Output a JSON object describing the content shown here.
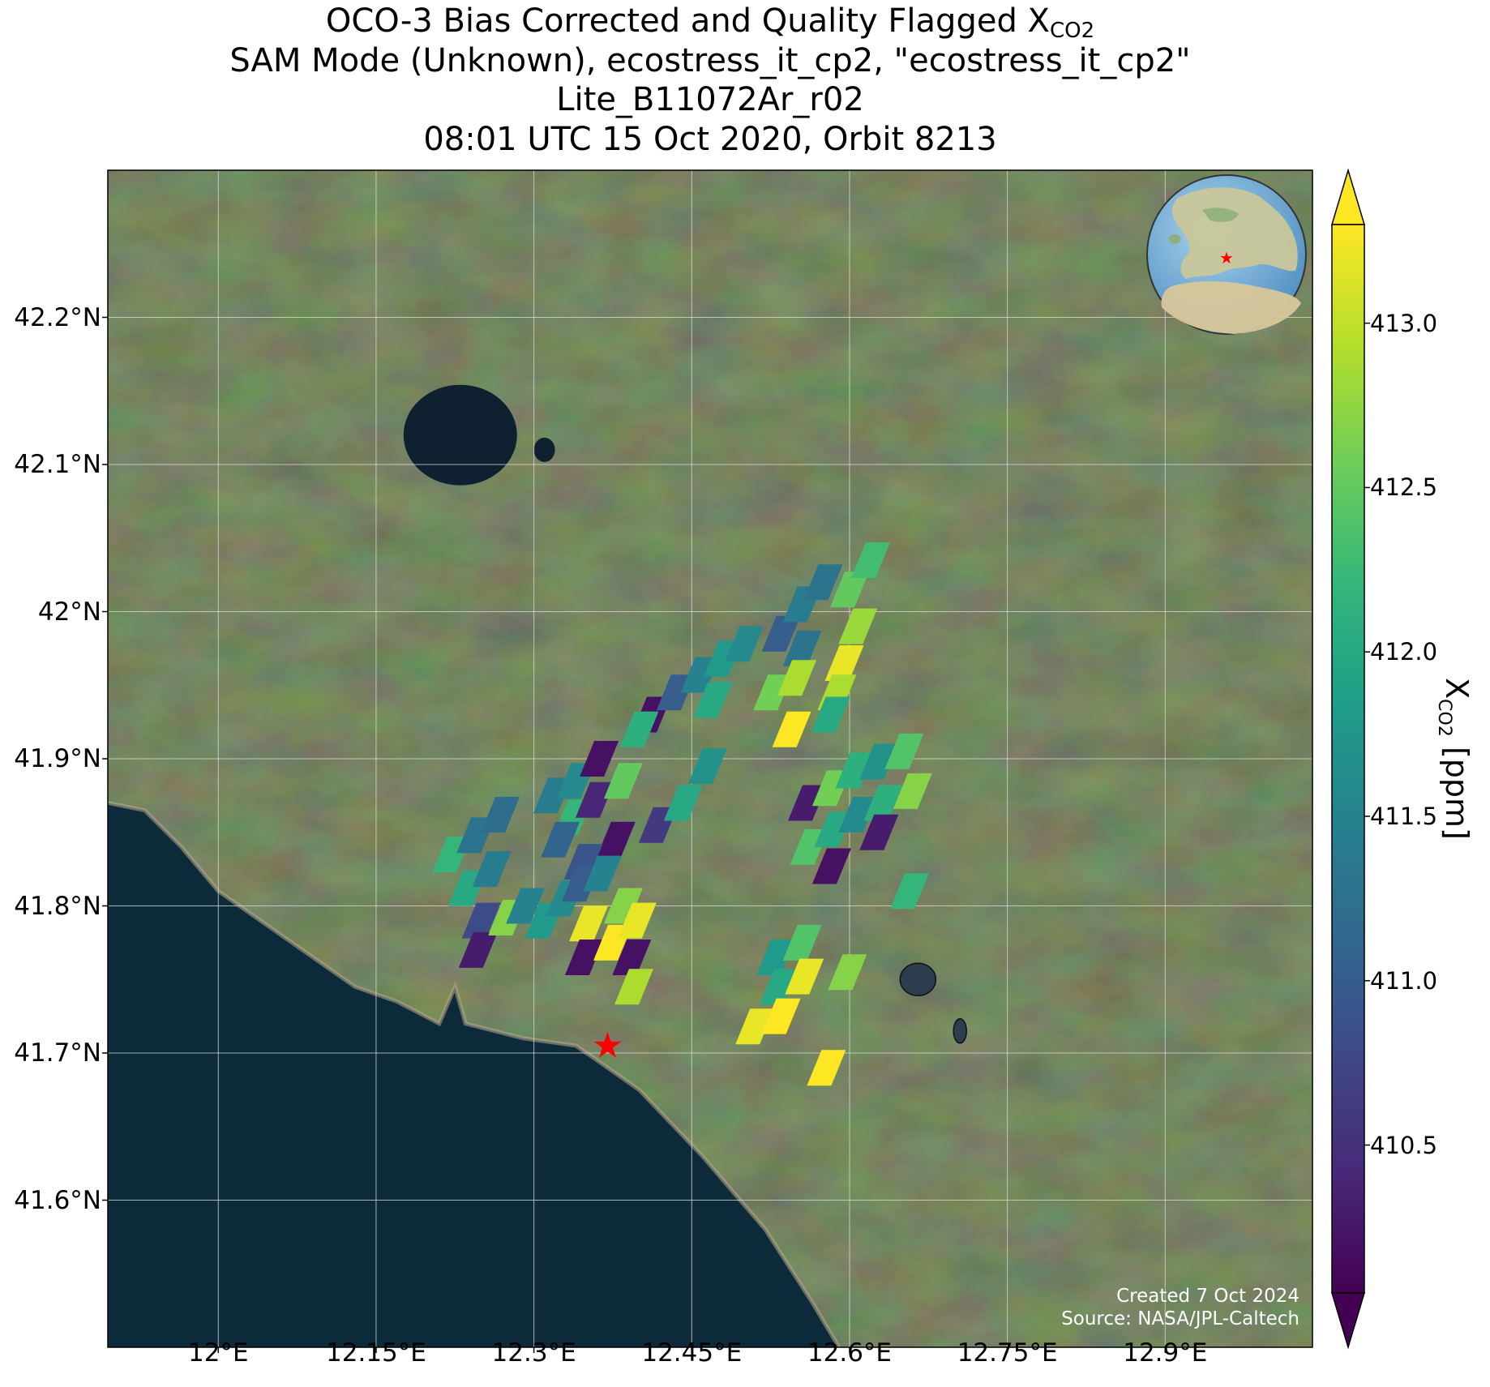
{
  "title": {
    "line1_prefix": "OCO-3 Bias Corrected and Quality Flagged X",
    "line1_sub": "CO2",
    "line2": "SAM Mode (Unknown), ecostress_it_cp2, \"ecostress_it_cp2\"",
    "line3": "Lite_B11072Ar_r02",
    "line4": "08:01 UTC 15 Oct 2020, Orbit 8213"
  },
  "map": {
    "extent": {
      "lon_min": 11.895,
      "lon_max": 13.04,
      "lat_min": 41.5,
      "lat_max": 42.3
    },
    "lat_ticks": [
      {
        "value": 41.6,
        "label": "41.6°N"
      },
      {
        "value": 41.7,
        "label": "41.7°N"
      },
      {
        "value": 41.8,
        "label": "41.8°N"
      },
      {
        "value": 41.9,
        "label": "41.9°N"
      },
      {
        "value": 42.0,
        "label": "42°N"
      },
      {
        "value": 42.1,
        "label": "42.1°N"
      },
      {
        "value": 42.2,
        "label": "42.2°N"
      }
    ],
    "lon_ticks": [
      {
        "value": 12.0,
        "label": "12°E"
      },
      {
        "value": 12.15,
        "label": "12.15°E"
      },
      {
        "value": 12.3,
        "label": "12.3°E"
      },
      {
        "value": 12.45,
        "label": "12.45°E"
      },
      {
        "value": 12.6,
        "label": "12.6°E"
      },
      {
        "value": 12.75,
        "label": "12.75°E"
      },
      {
        "value": 12.9,
        "label": "12.9°E"
      }
    ],
    "target_marker": {
      "symbol": "★",
      "lon": 12.37,
      "lat": 41.705,
      "color": "#ff0000"
    },
    "lakes": [
      {
        "name": "Lake Bracciano",
        "lon": 12.23,
        "lat": 42.12
      },
      {
        "name": "Lake Martignano",
        "lon": 12.31,
        "lat": 42.11
      },
      {
        "name": "Lake Albano",
        "lon": 12.665,
        "lat": 41.75
      },
      {
        "name": "Lake Nemi",
        "lon": 12.705,
        "lat": 41.715
      }
    ]
  },
  "colors": {
    "sea": "#0c2a3a",
    "land": "#4a5a36",
    "grid": "#dddddd",
    "viridis": [
      "#440154",
      "#482878",
      "#3e4989",
      "#31688e",
      "#26828e",
      "#1f9e89",
      "#35b779",
      "#6ece58",
      "#b5de2b",
      "#fde725"
    ]
  },
  "colorbar": {
    "label_prefix": "X",
    "label_sub": "CO2",
    "label_suffix": " [ppm]",
    "vmin": 410.05,
    "vmax": 413.3,
    "ticks": [
      {
        "value": 410.5,
        "label": "410.5"
      },
      {
        "value": 411.0,
        "label": "411.0"
      },
      {
        "value": 411.5,
        "label": "411.5"
      },
      {
        "value": 412.0,
        "label": "412.0"
      },
      {
        "value": 412.5,
        "label": "412.5"
      },
      {
        "value": 413.0,
        "label": "413.0"
      }
    ],
    "extend": "both"
  },
  "soundings": [
    {
      "lon": 12.222,
      "lat": 41.835,
      "xco2": 412.2
    },
    {
      "lon": 12.245,
      "lat": 41.848,
      "xco2": 411.3
    },
    {
      "lon": 12.268,
      "lat": 41.862,
      "xco2": 411.2
    },
    {
      "lon": 12.237,
      "lat": 41.812,
      "xco2": 412.0
    },
    {
      "lon": 12.26,
      "lat": 41.825,
      "xco2": 411.4
    },
    {
      "lon": 12.25,
      "lat": 41.79,
      "xco2": 410.8
    },
    {
      "lon": 12.247,
      "lat": 41.77,
      "xco2": 410.3
    },
    {
      "lon": 12.275,
      "lat": 41.792,
      "xco2": 412.7
    },
    {
      "lon": 12.292,
      "lat": 41.8,
      "xco2": 411.5
    },
    {
      "lon": 12.31,
      "lat": 41.79,
      "xco2": 411.8
    },
    {
      "lon": 12.33,
      "lat": 41.805,
      "xco2": 411.6
    },
    {
      "lon": 12.318,
      "lat": 41.875,
      "xco2": 411.4
    },
    {
      "lon": 12.34,
      "lat": 41.885,
      "xco2": 411.6
    },
    {
      "lon": 12.362,
      "lat": 41.9,
      "xco2": 410.2
    },
    {
      "lon": 12.337,
      "lat": 41.86,
      "xco2": 412.2
    },
    {
      "lon": 12.358,
      "lat": 41.872,
      "xco2": 410.4
    },
    {
      "lon": 12.385,
      "lat": 41.885,
      "xco2": 412.5
    },
    {
      "lon": 12.378,
      "lat": 41.845,
      "xco2": 410.2
    },
    {
      "lon": 12.325,
      "lat": 41.845,
      "xco2": 411.1
    },
    {
      "lon": 12.347,
      "lat": 41.83,
      "xco2": 410.9
    },
    {
      "lon": 12.345,
      "lat": 41.815,
      "xco2": 411.0
    },
    {
      "lon": 12.365,
      "lat": 41.822,
      "xco2": 411.5
    },
    {
      "lon": 12.352,
      "lat": 41.788,
      "xco2": 413.2
    },
    {
      "lon": 12.348,
      "lat": 41.765,
      "xco2": 410.2
    },
    {
      "lon": 12.375,
      "lat": 41.775,
      "xco2": 413.3
    },
    {
      "lon": 12.385,
      "lat": 41.8,
      "xco2": 412.7
    },
    {
      "lon": 12.398,
      "lat": 41.79,
      "xco2": 413.2
    },
    {
      "lon": 12.393,
      "lat": 41.765,
      "xco2": 410.2
    },
    {
      "lon": 12.395,
      "lat": 41.745,
      "xco2": 412.9
    },
    {
      "lon": 12.412,
      "lat": 41.93,
      "xco2": 410.2
    },
    {
      "lon": 12.435,
      "lat": 41.945,
      "xco2": 411.0
    },
    {
      "lon": 12.458,
      "lat": 41.957,
      "xco2": 411.5
    },
    {
      "lon": 12.48,
      "lat": 41.968,
      "xco2": 411.8
    },
    {
      "lon": 12.5,
      "lat": 41.978,
      "xco2": 411.6
    },
    {
      "lon": 12.4,
      "lat": 41.92,
      "xco2": 412.1
    },
    {
      "lon": 12.418,
      "lat": 41.855,
      "xco2": 410.6
    },
    {
      "lon": 12.442,
      "lat": 41.87,
      "xco2": 412.0
    },
    {
      "lon": 12.465,
      "lat": 41.895,
      "xco2": 411.7
    },
    {
      "lon": 12.47,
      "lat": 41.94,
      "xco2": 412.0
    },
    {
      "lon": 12.535,
      "lat": 41.985,
      "xco2": 411.0
    },
    {
      "lon": 12.555,
      "lat": 42.005,
      "xco2": 411.4
    },
    {
      "lon": 12.555,
      "lat": 41.975,
      "xco2": 411.3
    },
    {
      "lon": 12.575,
      "lat": 42.02,
      "xco2": 411.3
    },
    {
      "lon": 12.527,
      "lat": 41.945,
      "xco2": 412.6
    },
    {
      "lon": 12.55,
      "lat": 41.955,
      "xco2": 412.9
    },
    {
      "lon": 12.545,
      "lat": 41.92,
      "xco2": 413.3
    },
    {
      "lon": 12.6,
      "lat": 42.015,
      "xco2": 412.5
    },
    {
      "lon": 12.608,
      "lat": 41.99,
      "xco2": 412.8
    },
    {
      "lon": 12.62,
      "lat": 42.035,
      "xco2": 412.3
    },
    {
      "lon": 12.595,
      "lat": 41.965,
      "xco2": 413.2
    },
    {
      "lon": 12.588,
      "lat": 41.945,
      "xco2": 412.9
    },
    {
      "lon": 12.582,
      "lat": 41.93,
      "xco2": 412.0
    },
    {
      "lon": 12.56,
      "lat": 41.87,
      "xco2": 410.3
    },
    {
      "lon": 12.583,
      "lat": 41.88,
      "xco2": 412.6
    },
    {
      "lon": 12.605,
      "lat": 41.892,
      "xco2": 412.1
    },
    {
      "lon": 12.628,
      "lat": 41.898,
      "xco2": 411.7
    },
    {
      "lon": 12.652,
      "lat": 41.905,
      "xco2": 412.4
    },
    {
      "lon": 12.562,
      "lat": 41.84,
      "xco2": 412.4
    },
    {
      "lon": 12.585,
      "lat": 41.852,
      "xco2": 412.0
    },
    {
      "lon": 12.583,
      "lat": 41.827,
      "xco2": 410.2
    },
    {
      "lon": 12.608,
      "lat": 41.862,
      "xco2": 411.6
    },
    {
      "lon": 12.632,
      "lat": 41.87,
      "xco2": 412.1
    },
    {
      "lon": 12.628,
      "lat": 41.85,
      "xco2": 410.3
    },
    {
      "lon": 12.66,
      "lat": 41.878,
      "xco2": 412.7
    },
    {
      "lon": 12.657,
      "lat": 41.81,
      "xco2": 412.2
    },
    {
      "lon": 12.53,
      "lat": 41.765,
      "xco2": 411.8
    },
    {
      "lon": 12.555,
      "lat": 41.775,
      "xco2": 412.4
    },
    {
      "lon": 12.533,
      "lat": 41.745,
      "xco2": 412.0
    },
    {
      "lon": 12.557,
      "lat": 41.752,
      "xco2": 413.2
    },
    {
      "lon": 12.51,
      "lat": 41.718,
      "xco2": 413.2
    },
    {
      "lon": 12.535,
      "lat": 41.725,
      "xco2": 413.3
    },
    {
      "lon": 12.598,
      "lat": 41.755,
      "xco2": 412.7
    },
    {
      "lon": 12.578,
      "lat": 41.69,
      "xco2": 413.3
    }
  ],
  "credits": {
    "line1": "Created 7 Oct 2024",
    "line2": "Source: NASA/JPL-Caltech"
  }
}
